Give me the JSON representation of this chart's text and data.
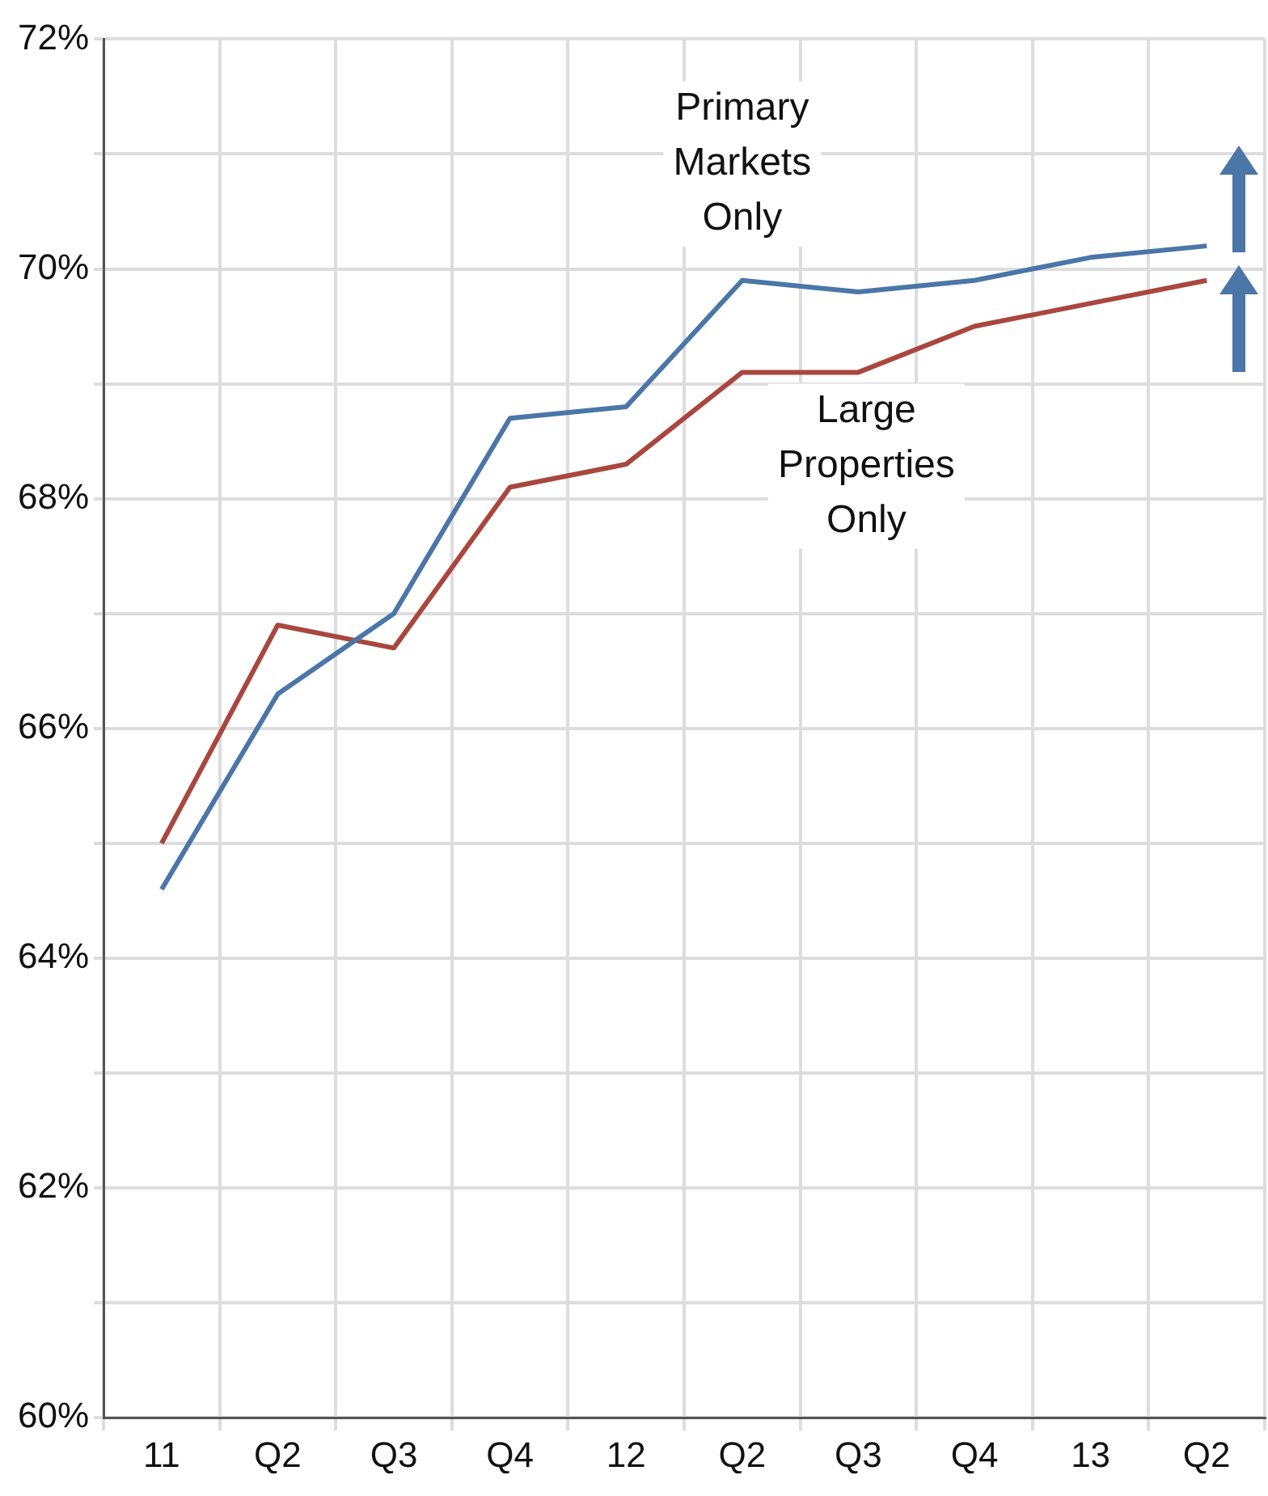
{
  "chart_data": {
    "type": "line",
    "categories": [
      "11",
      "Q2",
      "Q3",
      "Q4",
      "12",
      "Q2",
      "Q3",
      "Q4",
      "13",
      "Q2"
    ],
    "series": [
      {
        "name": "Primary Markets Only",
        "color": "#4a76a8",
        "values": [
          64.6,
          66.3,
          67.0,
          68.7,
          68.8,
          69.9,
          69.8,
          69.9,
          70.1,
          70.2
        ]
      },
      {
        "name": "Large Properties Only",
        "color": "#a9473e",
        "values": [
          65.0,
          66.9,
          66.7,
          68.1,
          68.3,
          69.1,
          69.1,
          69.5,
          69.7,
          69.9
        ]
      }
    ],
    "ylim": [
      60,
      72
    ],
    "yticks": [
      {
        "value": 60,
        "label": "60%"
      },
      {
        "value": 61,
        "label": null
      },
      {
        "value": 62,
        "label": "62%"
      },
      {
        "value": 63,
        "label": null
      },
      {
        "value": 64,
        "label": "64%"
      },
      {
        "value": 65,
        "label": null
      },
      {
        "value": 66,
        "label": "66%"
      },
      {
        "value": 67,
        "label": null
      },
      {
        "value": 68,
        "label": "68%"
      },
      {
        "value": 69,
        "label": null
      },
      {
        "value": 70,
        "label": "70%"
      },
      {
        "value": 71,
        "label": null
      },
      {
        "value": 72,
        "label": "72%"
      }
    ],
    "grid": true,
    "legend": false,
    "marker": "none",
    "line_style": "solid"
  }
}
